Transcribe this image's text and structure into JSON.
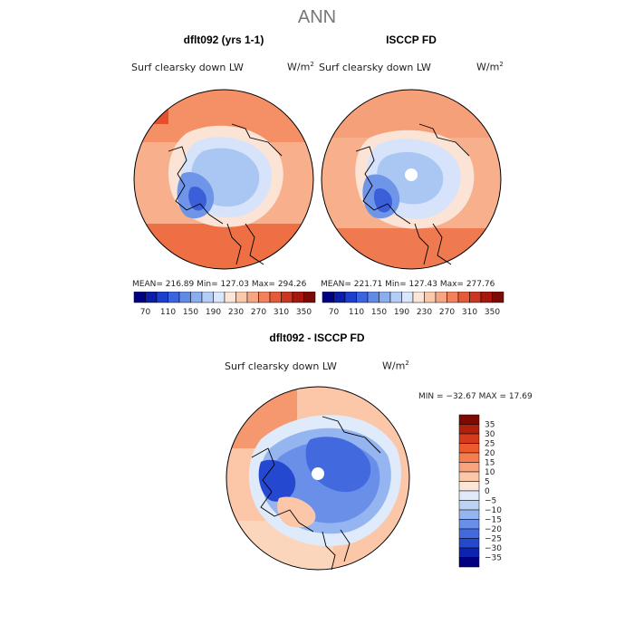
{
  "title": "ANN",
  "panels": [
    {
      "case": "dflt092 (yrs 1-1)",
      "variable": "Surf clearsky down LW",
      "units_base": "W/m",
      "units_exp": "2",
      "stats": "MEAN= 216.89   Min= 127.03   Max= 294.26"
    },
    {
      "case": "ISCCP FD",
      "variable": "Surf clearsky down LW",
      "units_base": "W/m",
      "units_exp": "2",
      "stats": "MEAN= 221.71   Min= 127.43   Max= 277.76"
    }
  ],
  "top_colorbar": {
    "colors": [
      "#000080",
      "#0a1ea8",
      "#1e3fcc",
      "#3a64e0",
      "#5f8ae8",
      "#8aaef0",
      "#b3cdf5",
      "#d9e6fb",
      "#fbe6d8",
      "#fbc8aa",
      "#f8a582",
      "#f2815c",
      "#e65a35",
      "#cc3520",
      "#a8170f",
      "#7d0a05"
    ],
    "labels": [
      "70",
      "110",
      "150",
      "190",
      "230",
      "270",
      "310",
      "350"
    ]
  },
  "diff_panel": {
    "case": "dflt092 - ISCCP FD",
    "variable": "Surf clearsky down LW",
    "units_base": "W/m",
    "units_exp": "2",
    "stats": "MIN = −32.67  MAX =  17.69"
  },
  "diff_colorbar": {
    "colors": [
      "#7d0a05",
      "#b0200d",
      "#d63a1c",
      "#ec5a2e",
      "#f57e4e",
      "#f9a47c",
      "#fbc7a8",
      "#fde6d6",
      "#dfeafb",
      "#bcd3f6",
      "#94b5f0",
      "#6a8fe8",
      "#4369de",
      "#2448cf",
      "#0e24b0",
      "#000080"
    ],
    "labels": [
      "35",
      "30",
      "25",
      "20",
      "15",
      "10",
      "5",
      "0",
      "−5",
      "−10",
      "−15",
      "−20",
      "−25",
      "−30",
      "−35"
    ]
  }
}
